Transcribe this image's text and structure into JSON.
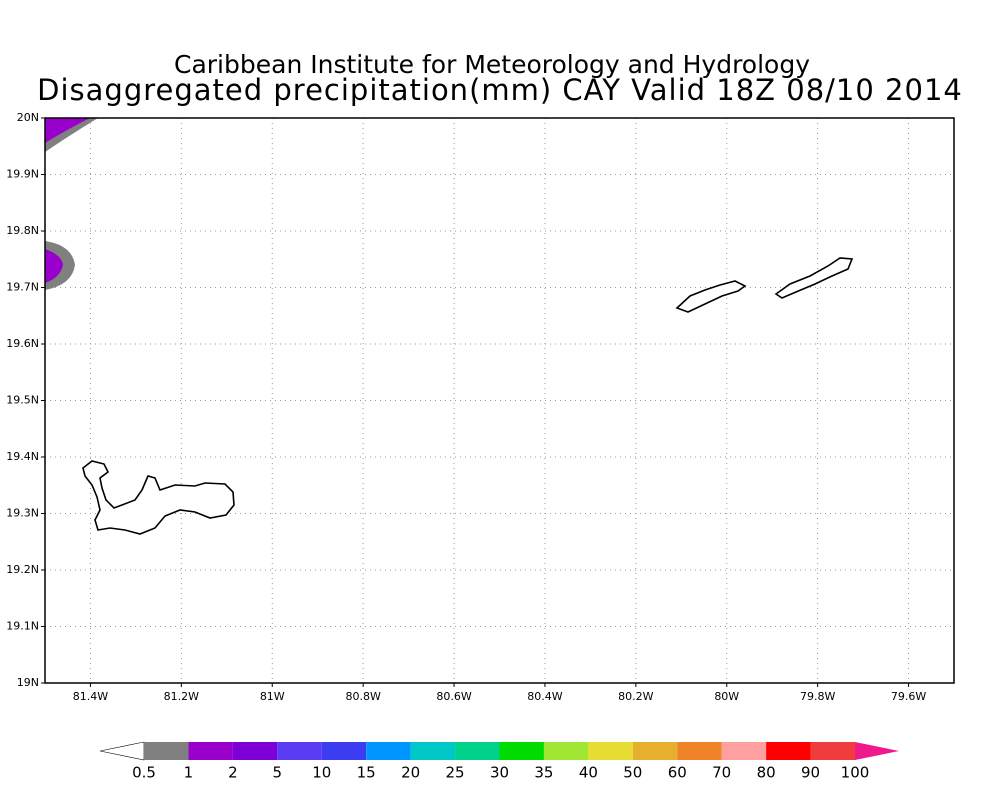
{
  "title": [
    "Caribbean Institute for Meteorology and Hydrology",
    "Disaggregated precipitation(mm) CAY Valid 18Z 08/10 2014"
  ],
  "map": {
    "lon_range": [
      -81.5,
      -79.5
    ],
    "lat_range": [
      19,
      20
    ],
    "lat_ticks": [
      {
        "value": 20,
        "label": "20N"
      },
      {
        "value": 19.9,
        "label": "19.9N"
      },
      {
        "value": 19.8,
        "label": "19.8N"
      },
      {
        "value": 19.7,
        "label": "19.7N"
      },
      {
        "value": 19.6,
        "label": "19.6N"
      },
      {
        "value": 19.5,
        "label": "19.5N"
      },
      {
        "value": 19.4,
        "label": "19.4N"
      },
      {
        "value": 19.3,
        "label": "19.3N"
      },
      {
        "value": 19.2,
        "label": "19.2N"
      },
      {
        "value": 19.1,
        "label": "19.1N"
      },
      {
        "value": 19,
        "label": "19N"
      }
    ],
    "lon_ticks": [
      {
        "value": -81.4,
        "label": "81.4W"
      },
      {
        "value": -81.2,
        "label": "81.2W"
      },
      {
        "value": -81,
        "label": "81W"
      },
      {
        "value": -80.8,
        "label": "80.8W"
      },
      {
        "value": -80.6,
        "label": "80.6W"
      },
      {
        "value": -80.4,
        "label": "80.4W"
      },
      {
        "value": -80.2,
        "label": "80.2W"
      },
      {
        "value": -80,
        "label": "80W"
      },
      {
        "value": -79.8,
        "label": "79.8W"
      },
      {
        "value": -79.6,
        "label": "79.6W"
      }
    ]
  },
  "colorbar": {
    "levels": [
      0.5,
      1,
      2,
      5,
      10,
      15,
      20,
      25,
      30,
      35,
      40,
      50,
      60,
      70,
      80,
      90,
      100
    ],
    "colors": [
      "#ffffff",
      "#808080",
      "#9900cc",
      "#7d00d9",
      "#5a3cf5",
      "#3c3cf0",
      "#0096ff",
      "#00c8c8",
      "#00d28c",
      "#00dc00",
      "#a0e632",
      "#e6dc32",
      "#e6af2d",
      "#f08228",
      "#ffa0a0",
      "#ff0000",
      "#f03c3c",
      "#f0198c"
    ]
  }
}
